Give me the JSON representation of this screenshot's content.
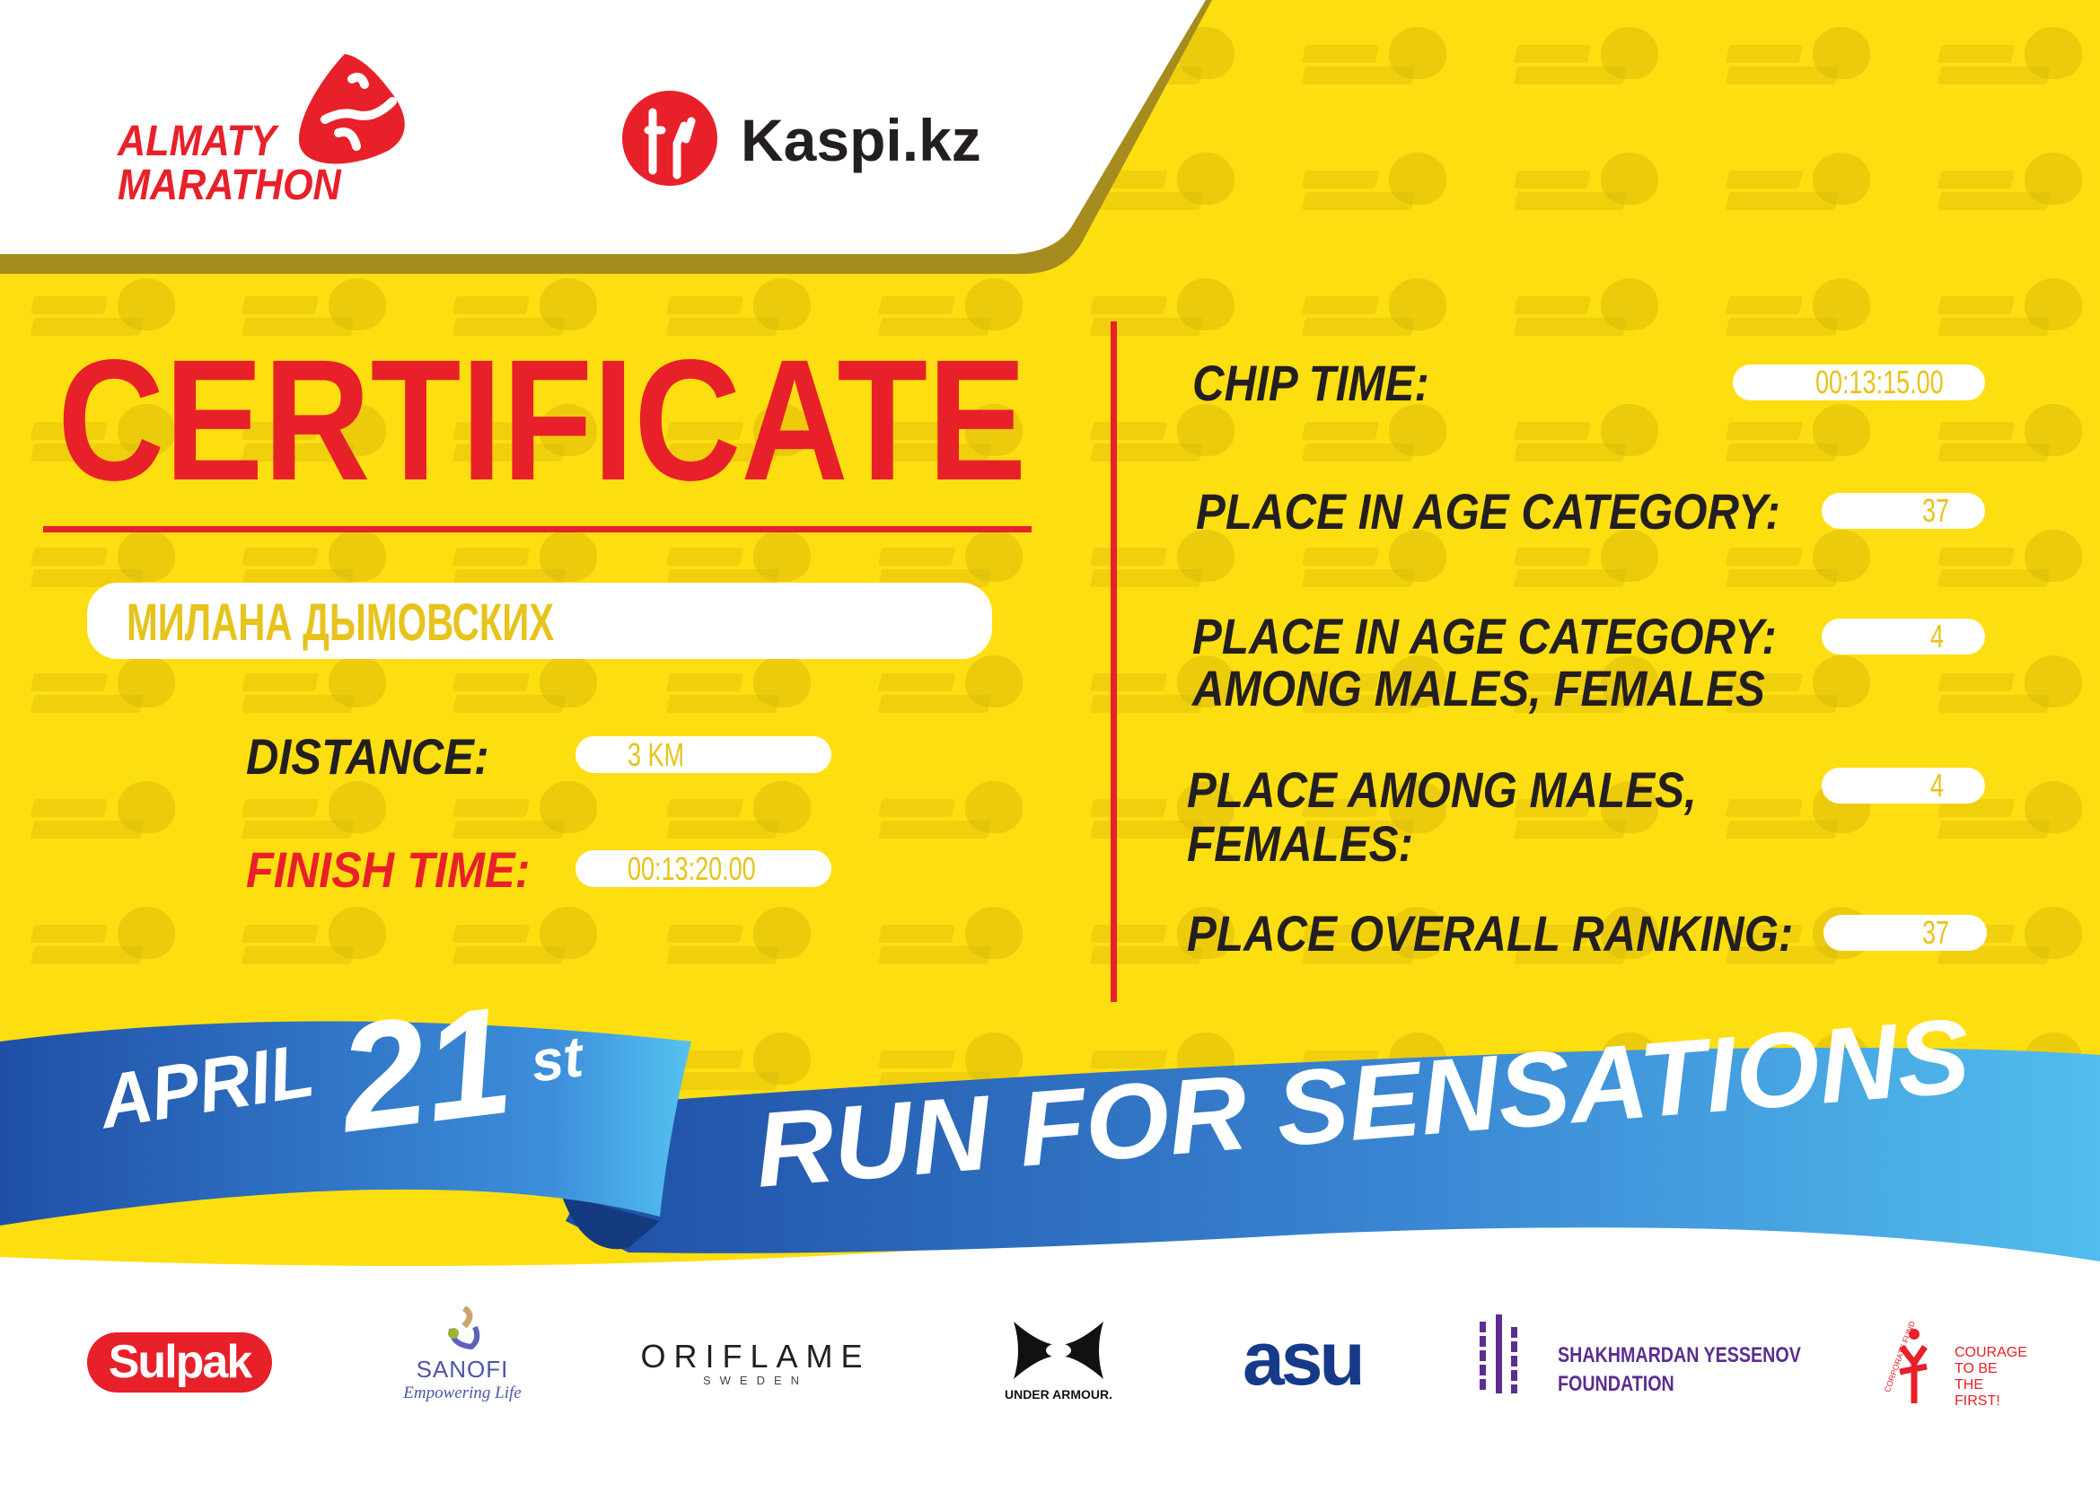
{
  "header": {
    "event_logo_lines": [
      "ALMATY",
      "MARATHON"
    ],
    "sponsor_logo": "Kaspi.kz"
  },
  "certificate": {
    "title": "CERTIFICATE",
    "participant_name": "МИЛАНА ДЫМОВСКИХ",
    "distance_label": "DISTANCE:",
    "distance_value": "3 KM",
    "finish_time_label": "FINISH TIME:",
    "finish_time_value": "00:13:20.00",
    "chip_time_label": "CHIP TIME:",
    "chip_time_value": "00:13:15.00",
    "age_category_label": "PLACE IN AGE CATEGORY:",
    "age_category_value": "37",
    "age_category_gender_label_1": "PLACE IN AGE CATEGORY:",
    "age_category_gender_label_2": "AMONG MALES, FEMALES",
    "age_category_gender_value": "4",
    "gender_place_label_1": "PLACE AMONG MALES,",
    "gender_place_label_2": "FEMALES:",
    "gender_place_value": "4",
    "overall_label": "PLACE OVERALL RANKING:",
    "overall_value": "37"
  },
  "ribbon": {
    "month": "APRIL",
    "day": "21",
    "suffix": "st",
    "slogan": "RUN FOR SENSATIONS"
  },
  "watermark": [
    "ALMATY",
    "MARATHON"
  ],
  "sponsors": {
    "sulpak": "Sulpak",
    "sanofi": "SANOFI",
    "sanofi_tagline": "Empowering Life",
    "oriflame": "ORIFLAME",
    "oriflame_sub": "SWEDEN",
    "under_armour": "UNDER ARMOUR.",
    "asu": "asu",
    "yessenov_1": "SHAKHMARDAN YESSENOV",
    "yessenov_2": "FOUNDATION",
    "courage_fund": "CORPORATE FUND",
    "courage_1": "COURAGE",
    "courage_2": "TO BE",
    "courage_3": "THE FIRST!"
  },
  "colors": {
    "yellow": "#FDDE10",
    "red": "#E8202A",
    "dark": "#231F20",
    "blue_dark": "#1F4FA6",
    "blue_light": "#52BDEE",
    "value_text": "#E7C31B"
  }
}
